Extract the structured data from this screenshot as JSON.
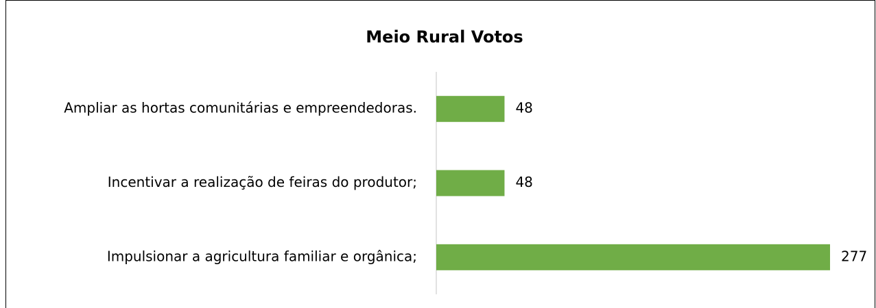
{
  "chart_data": {
    "type": "bar",
    "orientation": "horizontal",
    "title": "Meio Rural Votos",
    "categories": [
      "Ampliar as hortas comunitárias e empreendedoras.",
      "Incentivar a realização de feiras do produtor;",
      "Impulsionar a agricultura familiar e orgânica;"
    ],
    "values": [
      48,
      48,
      277
    ],
    "color": "#70ad47"
  }
}
